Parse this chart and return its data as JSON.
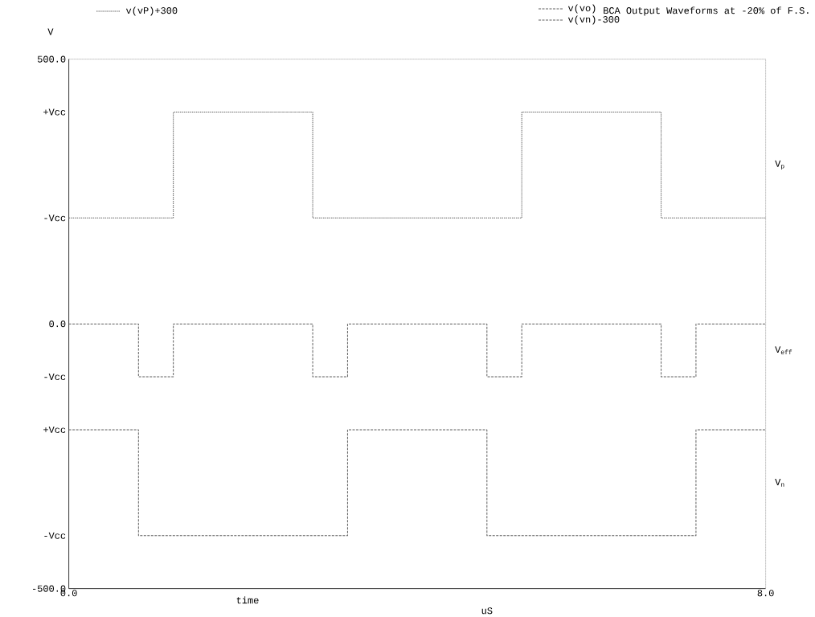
{
  "chart_data": {
    "type": "step",
    "title": "BCA Output Waveforms at -20% of F.S.",
    "xlabel": "time",
    "ylabel": "V",
    "annotations": [
      "uS",
      "V$_{p}$",
      "V$_{eff}$",
      "V$_{n}$"
    ],
    "xlim": [
      0,
      8
    ],
    "ylim": [
      -500,
      500
    ],
    "xticks": [
      {
        "value": 0,
        "label": "0.0"
      },
      {
        "value": 8,
        "label": "8.0"
      }
    ],
    "yticks": [
      {
        "value": -500,
        "label": "-500.0"
      },
      {
        "value": -400,
        "label": "-Vcc"
      },
      {
        "value": -200,
        "label": "+Vcc"
      },
      {
        "value": -100,
        "label": "-Vcc"
      },
      {
        "value": 0,
        "label": "0.0"
      },
      {
        "value": 200,
        "label": "-Vcc"
      },
      {
        "value": 400,
        "label": "+Vcc"
      },
      {
        "value": 500,
        "label": "500.0"
      }
    ],
    "grid": false,
    "legend": "top",
    "marker": "none",
    "series": [
      {
        "name": "v(vP)+300",
        "color": "#606060",
        "line_style": "dotted",
        "x": [
          0,
          1.2,
          2.8,
          5.2,
          6.8,
          8
        ],
        "values": [
          200,
          400,
          200,
          400,
          200,
          200
        ]
      },
      {
        "name": "v(vo)",
        "color": "#606060",
        "line_style": "dashed",
        "x": [
          0,
          0.8,
          1.2,
          2.8,
          3.2,
          4.8,
          5.2,
          6.8,
          7.2,
          8
        ],
        "values": [
          0,
          -100,
          0,
          -100,
          0,
          -100,
          0,
          -100,
          0,
          0
        ]
      },
      {
        "name": "v(vn)-300",
        "color": "#606060",
        "line_style": "dashed",
        "x": [
          0,
          0.8,
          3.2,
          4.8,
          7.2,
          8
        ],
        "values": [
          -200,
          -400,
          -200,
          -400,
          -200,
          -200
        ]
      }
    ]
  }
}
